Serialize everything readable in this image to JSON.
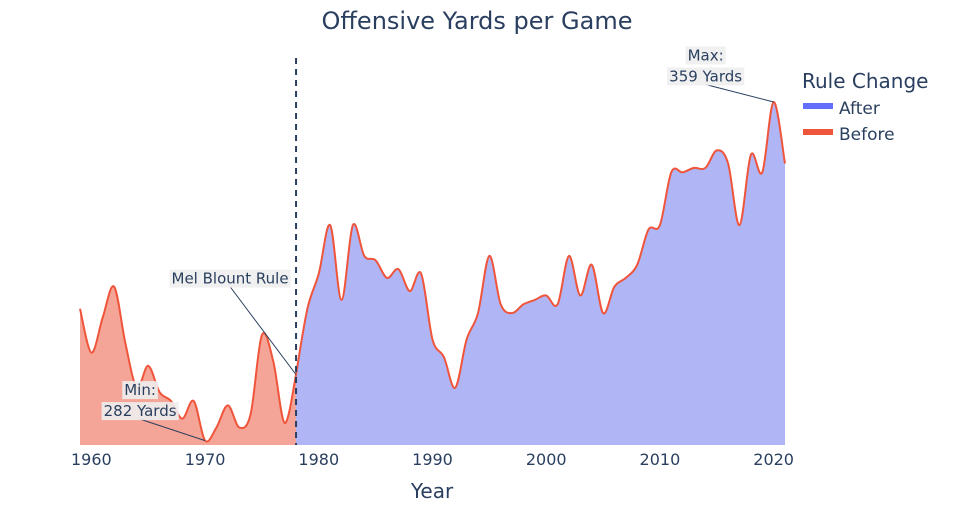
{
  "chart_data": {
    "type": "area",
    "title": "Offensive Yards per Game",
    "xlabel": "Year",
    "ylabel": "",
    "x_ticks": [
      1960,
      1970,
      1980,
      1990,
      2000,
      2010,
      2020
    ],
    "xlim": [
      1959,
      2021
    ],
    "ylim": [
      281,
      369
    ],
    "legend": {
      "title": "Rule Change",
      "placement": "top-right",
      "entries": [
        "After",
        "Before"
      ]
    },
    "colors": {
      "after_fill": "#b0b5f5",
      "after_legend": "#636efa",
      "before_fill": "#f5a597",
      "line": "#ef553b",
      "vline": "#2a3f5f"
    },
    "series": [
      {
        "name": "Before",
        "x": [
          1959,
          1960,
          1961,
          1962,
          1963,
          1964,
          1965,
          1966,
          1967,
          1968,
          1969,
          1970,
          1971,
          1972,
          1973,
          1974,
          1975,
          1976,
          1977,
          1978
        ],
        "y": [
          312,
          302,
          310,
          317,
          304,
          294,
          299,
          293,
          291,
          287,
          291,
          282,
          285,
          290,
          285,
          288,
          306,
          300,
          286,
          297
        ]
      },
      {
        "name": "After",
        "x": [
          1978,
          1979,
          1980,
          1981,
          1982,
          1983,
          1984,
          1985,
          1986,
          1987,
          1988,
          1989,
          1990,
          1991,
          1992,
          1993,
          1994,
          1995,
          1996,
          1997,
          1998,
          1999,
          2000,
          2001,
          2002,
          2003,
          2004,
          2005,
          2006,
          2007,
          2008,
          2009,
          2010,
          2011,
          2012,
          2013,
          2014,
          2015,
          2016,
          2017,
          2018,
          2019,
          2020,
          2021
        ],
        "y": [
          297,
          312,
          320,
          331,
          314,
          331,
          324,
          323,
          319,
          321,
          316,
          320,
          305,
          301,
          294,
          305,
          311,
          324,
          313,
          311,
          313,
          314,
          315,
          313,
          324,
          315,
          322,
          311,
          317,
          319,
          322,
          330,
          331,
          343,
          343,
          344,
          344,
          348,
          345,
          331,
          347,
          343,
          359,
          345
        ]
      }
    ],
    "annotations": [
      {
        "text_lines": [
          "Max:",
          "359 Yards"
        ],
        "x": 2020,
        "y": 359
      },
      {
        "text_lines": [
          "Min:",
          "282 Yards"
        ],
        "x": 1970,
        "y": 282
      },
      {
        "text_lines": [
          "Mel Blount Rule"
        ],
        "x": 1978,
        "y": 297
      }
    ],
    "vline_x": 1978
  }
}
